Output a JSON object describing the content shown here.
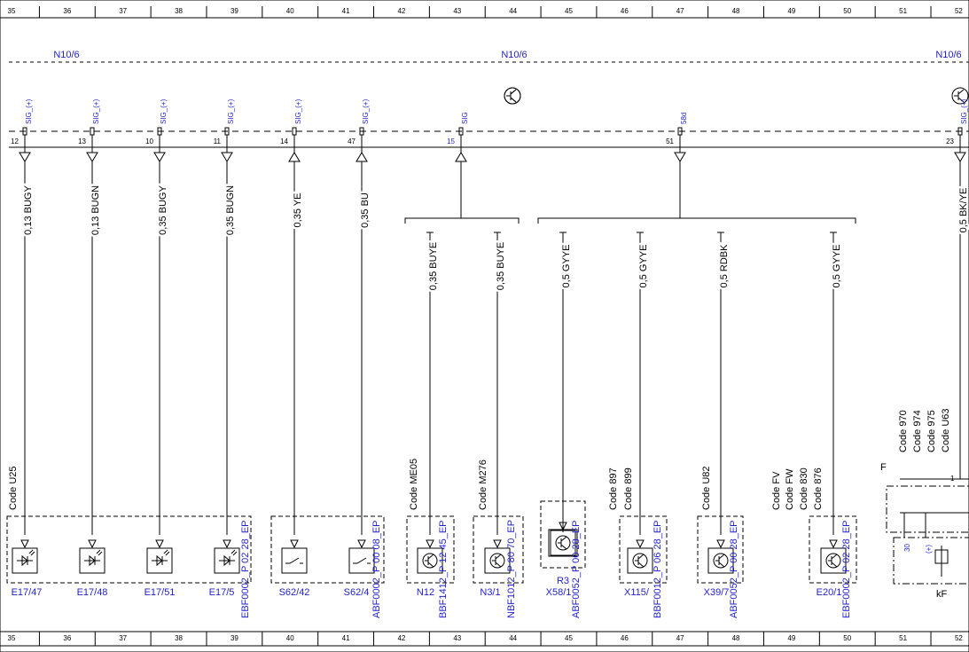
{
  "ruler_top": [
    "35",
    "36",
    "37",
    "38",
    "39",
    "40",
    "41",
    "42",
    "43",
    "44",
    "45",
    "46",
    "47",
    "48",
    "49",
    "50",
    "51",
    "52"
  ],
  "ruler_bottom": [
    "35",
    "36",
    "37",
    "38",
    "39",
    "40",
    "41",
    "42",
    "43",
    "44",
    "45",
    "46",
    "47",
    "48",
    "49",
    "50",
    "51",
    "52"
  ],
  "module_labels": [
    "N10/6",
    "N10/6",
    "N10/6"
  ],
  "pins": [
    {
      "signal": "SIG_(+)",
      "number": "12"
    },
    {
      "signal": "SIG_(+)",
      "number": "13"
    },
    {
      "signal": "SIG_(+)",
      "number": "10"
    },
    {
      "signal": "SIG_(+)",
      "number": "11"
    },
    {
      "signal": "SIG_(+)",
      "number": "14"
    },
    {
      "signal": "SIG_(+)",
      "number": "47"
    },
    {
      "signal": "SIG",
      "number": "15"
    },
    {
      "signal": "58d",
      "number": "51"
    },
    {
      "signal": "SIG_(+)",
      "number": "23"
    }
  ],
  "wires": [
    "0,13 BUGY",
    "0,13 BUGN",
    "0,35 BUGY",
    "0,35 BUGN",
    "0,35 YE",
    "0,35 BU",
    "0,35 BUYE",
    "0,35 BUYE",
    "0,5 GYYE",
    "0,5 GYYE",
    "0,5 RDBK",
    "0,5 GYYE",
    "0,5 BK/YE"
  ],
  "codes": [
    "Code U25",
    "Code ME05",
    "Code M276",
    "Code 897",
    "Code 899",
    "Code U82",
    "Code FV",
    "Code FW",
    "Code 830",
    "Code 876",
    "Code 970",
    "Code 974",
    "Code 975",
    "Code U63"
  ],
  "components": [
    "E17/47",
    "E17/48",
    "E17/51",
    "E17/5",
    "S62/42",
    "S62/4",
    "N12",
    "N3/1",
    "R3",
    "X58/1",
    "X115/",
    "X39/7",
    "E20/1"
  ],
  "references": [
    "EBF0002_P 02 28_EP",
    "ABF0002_P 00 08_EP",
    "BBF1412_P 12 45_EP",
    "NBF1012_P 80 70_EP",
    "ABF0052_P 00 28_EP",
    "BBF0012_P 06 28_EP",
    "ABF0052_P 00 28_EP",
    "EBF0002_P 02 28_EP"
  ],
  "relay": {
    "label": "F",
    "pin": "1",
    "name": "kF",
    "terminals": [
      "30",
      "(+)"
    ]
  }
}
